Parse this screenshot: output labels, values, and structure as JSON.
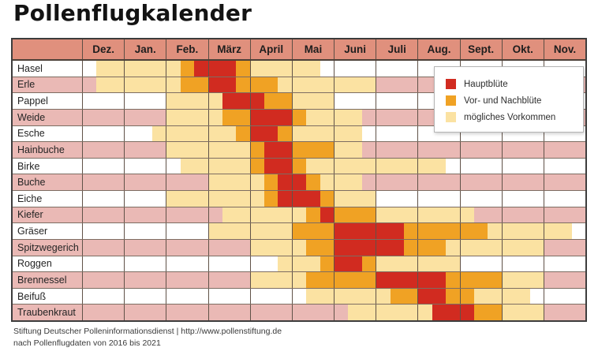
{
  "title": "Pollenflugkalender",
  "footer": {
    "line1": "Stiftung Deutscher Polleninformationsdienst | http://www.pollenstiftung.de",
    "line2": "nach Pollenflugdaten von 2016 bis 2021"
  },
  "colors": {
    "header_bg": "#e0907d",
    "row_bg": "#ffffff",
    "row_alt_bg": "#eab9b5",
    "main": "#d12b20",
    "prepost": "#f0a224",
    "possible": "#fbe2a2"
  },
  "legend": {
    "items": [
      {
        "key": "main",
        "label": "Hauptblüte"
      },
      {
        "key": "prepost",
        "label": "Vor- und Nachblüte"
      },
      {
        "key": "possible",
        "label": "mögliches Vorkommen"
      }
    ]
  },
  "chart_data": {
    "type": "heatmap",
    "title": "Pollenflugkalender",
    "resolution": "3 cells per month (month thirds)",
    "value_meaning": {
      "1": "mögliches Vorkommen",
      "2": "Vor- und Nachblüte",
      "3": "Hauptblüte"
    },
    "months": [
      "Dez.",
      "Jan.",
      "Feb.",
      "März",
      "April",
      "Mai",
      "Juni",
      "Juli",
      "Aug.",
      "Sept.",
      "Okt.",
      "Nov."
    ],
    "rows": [
      {
        "label": "Hasel",
        "cells": [
          0,
          1,
          1,
          1,
          1,
          1,
          1,
          2,
          3,
          3,
          3,
          2,
          1,
          1,
          1,
          1,
          1,
          0,
          0,
          0,
          0,
          0,
          0,
          0,
          0,
          0,
          0,
          0,
          0,
          0,
          0,
          0,
          0,
          0,
          0,
          0
        ]
      },
      {
        "label": "Erle",
        "cells": [
          0,
          1,
          1,
          1,
          1,
          1,
          1,
          2,
          2,
          3,
          3,
          2,
          2,
          2,
          1,
          1,
          1,
          1,
          1,
          1,
          1,
          0,
          0,
          0,
          0,
          0,
          0,
          0,
          0,
          0,
          0,
          0,
          0,
          0,
          0,
          0
        ]
      },
      {
        "label": "Pappel",
        "cells": [
          0,
          0,
          0,
          0,
          0,
          0,
          1,
          1,
          1,
          1,
          3,
          3,
          3,
          2,
          2,
          1,
          1,
          1,
          0,
          0,
          0,
          0,
          0,
          0,
          0,
          0,
          0,
          0,
          0,
          0,
          0,
          0,
          0,
          0,
          0,
          0
        ]
      },
      {
        "label": "Weide",
        "cells": [
          0,
          0,
          0,
          0,
          0,
          0,
          1,
          1,
          1,
          1,
          2,
          2,
          3,
          3,
          3,
          2,
          1,
          1,
          1,
          1,
          0,
          0,
          0,
          0,
          0,
          0,
          0,
          0,
          0,
          0,
          0,
          0,
          0,
          0,
          0,
          0
        ]
      },
      {
        "label": "Esche",
        "cells": [
          0,
          0,
          0,
          0,
          0,
          1,
          1,
          1,
          1,
          1,
          1,
          2,
          3,
          3,
          2,
          1,
          1,
          1,
          1,
          1,
          0,
          0,
          0,
          0,
          0,
          0,
          0,
          0,
          0,
          0,
          0,
          0,
          0,
          0,
          0,
          0
        ]
      },
      {
        "label": "Hainbuche",
        "cells": [
          0,
          0,
          0,
          0,
          0,
          0,
          1,
          1,
          1,
          1,
          1,
          1,
          2,
          3,
          3,
          2,
          2,
          2,
          1,
          1,
          0,
          0,
          0,
          0,
          0,
          0,
          0,
          0,
          0,
          0,
          0,
          0,
          0,
          0,
          0,
          0
        ]
      },
      {
        "label": "Birke",
        "cells": [
          0,
          0,
          0,
          0,
          0,
          0,
          0,
          1,
          1,
          1,
          1,
          1,
          2,
          3,
          3,
          2,
          1,
          1,
          1,
          1,
          1,
          1,
          1,
          1,
          1,
          1,
          0,
          0,
          0,
          0,
          0,
          0,
          0,
          0,
          0,
          0
        ]
      },
      {
        "label": "Buche",
        "cells": [
          0,
          0,
          0,
          0,
          0,
          0,
          0,
          0,
          0,
          1,
          1,
          1,
          1,
          2,
          3,
          3,
          2,
          1,
          1,
          1,
          0,
          0,
          0,
          0,
          0,
          0,
          0,
          0,
          0,
          0,
          0,
          0,
          0,
          0,
          0,
          0
        ]
      },
      {
        "label": "Eiche",
        "cells": [
          0,
          0,
          0,
          0,
          0,
          0,
          1,
          1,
          1,
          1,
          1,
          1,
          1,
          2,
          3,
          3,
          3,
          2,
          1,
          1,
          1,
          0,
          0,
          0,
          0,
          0,
          0,
          0,
          0,
          0,
          0,
          0,
          0,
          0,
          0,
          0
        ]
      },
      {
        "label": "Kiefer",
        "cells": [
          0,
          0,
          0,
          0,
          0,
          0,
          0,
          0,
          0,
          0,
          1,
          1,
          1,
          1,
          1,
          1,
          2,
          3,
          2,
          2,
          2,
          1,
          1,
          1,
          1,
          1,
          1,
          1,
          0,
          0,
          0,
          0,
          0,
          0,
          0,
          0
        ]
      },
      {
        "label": "Gräser",
        "cells": [
          0,
          0,
          0,
          0,
          0,
          0,
          0,
          0,
          0,
          1,
          1,
          1,
          1,
          1,
          1,
          2,
          2,
          2,
          3,
          3,
          3,
          3,
          3,
          2,
          2,
          2,
          2,
          2,
          2,
          1,
          1,
          1,
          1,
          1,
          1,
          0
        ]
      },
      {
        "label": "Spitzwegerich",
        "cells": [
          0,
          0,
          0,
          0,
          0,
          0,
          0,
          0,
          0,
          0,
          0,
          0,
          1,
          1,
          1,
          1,
          2,
          2,
          3,
          3,
          3,
          3,
          3,
          2,
          2,
          2,
          1,
          1,
          1,
          1,
          1,
          1,
          1,
          0,
          0,
          0
        ]
      },
      {
        "label": "Roggen",
        "cells": [
          0,
          0,
          0,
          0,
          0,
          0,
          0,
          0,
          0,
          0,
          0,
          0,
          0,
          0,
          1,
          1,
          1,
          2,
          3,
          3,
          2,
          1,
          1,
          1,
          1,
          1,
          1,
          0,
          0,
          0,
          0,
          0,
          0,
          0,
          0,
          0
        ]
      },
      {
        "label": "Brennessel",
        "cells": [
          0,
          0,
          0,
          0,
          0,
          0,
          0,
          0,
          0,
          0,
          0,
          0,
          1,
          1,
          1,
          1,
          2,
          2,
          2,
          2,
          2,
          3,
          3,
          3,
          3,
          3,
          2,
          2,
          2,
          2,
          1,
          1,
          1,
          0,
          0,
          0
        ]
      },
      {
        "label": "Beifuß",
        "cells": [
          0,
          0,
          0,
          0,
          0,
          0,
          0,
          0,
          0,
          0,
          0,
          0,
          0,
          0,
          0,
          0,
          1,
          1,
          1,
          1,
          1,
          1,
          2,
          2,
          3,
          3,
          2,
          2,
          1,
          1,
          1,
          1,
          0,
          0,
          0,
          0
        ]
      },
      {
        "label": "Traubenkraut",
        "cells": [
          0,
          0,
          0,
          0,
          0,
          0,
          0,
          0,
          0,
          0,
          0,
          0,
          0,
          0,
          0,
          0,
          0,
          0,
          0,
          1,
          1,
          1,
          1,
          1,
          1,
          3,
          3,
          3,
          2,
          2,
          1,
          1,
          1,
          0,
          0,
          0
        ]
      }
    ]
  }
}
